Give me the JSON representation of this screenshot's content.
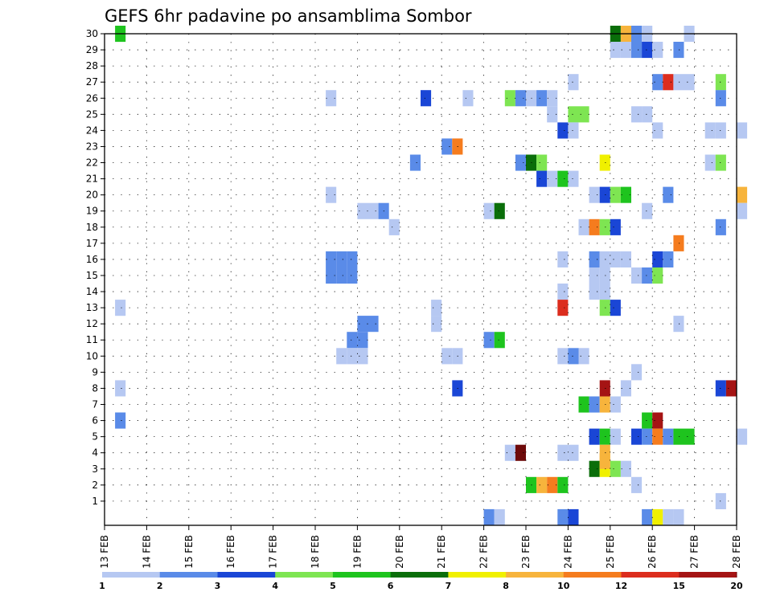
{
  "chart_data": {
    "type": "heatmap",
    "title": "GEFS 6hr padavine po ansamblima Sombor",
    "xlabel": "",
    "ylabel": "",
    "x_tick_labels": [
      "13 FEB",
      "14 FEB",
      "15 FEB",
      "16 FEB",
      "17 FEB",
      "18 FEB",
      "19 FEB",
      "20 FEB",
      "21 FEB",
      "22 FEB",
      "23 FEB",
      "24 FEB",
      "25 FEB",
      "26 FEB",
      "27 FEB",
      "28 FEB"
    ],
    "y_tick_labels": [
      "1",
      "2",
      "3",
      "4",
      "5",
      "6",
      "7",
      "8",
      "9",
      "10",
      "11",
      "12",
      "13",
      "14",
      "15",
      "16",
      "17",
      "18",
      "19",
      "20",
      "21",
      "22",
      "23",
      "24",
      "25",
      "26",
      "27",
      "28",
      "29",
      "30"
    ],
    "xlim": [
      "13 FEB",
      "28 FEB"
    ],
    "ylim": [
      0,
      30
    ],
    "x_step_hours": 6,
    "grid": "dotted",
    "colorbar": {
      "labels": [
        "1",
        "2",
        "3",
        "4",
        "5",
        "6",
        "7",
        "8",
        "10",
        "12",
        "15",
        "20"
      ],
      "colors": [
        "#b6c8f2",
        "#5a8be8",
        "#1a46d6",
        "#7ee552",
        "#1ec41e",
        "#0a6e0a",
        "#f0f000",
        "#f7b43c",
        "#f57c1e",
        "#dc2d1e",
        "#a51414",
        "#6e0a0a"
      ]
    },
    "cells": [
      [
        "13 FEB 06:00",
        30,
        5
      ],
      [
        "25 FEB 00:00",
        30,
        6
      ],
      [
        "25 FEB 06:00",
        30,
        9
      ],
      [
        "25 FEB 12:00",
        30,
        2
      ],
      [
        "25 FEB 18:00",
        30,
        1
      ],
      [
        "26 FEB 18:00",
        30,
        1
      ],
      [
        "25 FEB 00:00",
        29,
        1
      ],
      [
        "25 FEB 06:00",
        29,
        1
      ],
      [
        "25 FEB 12:00",
        29,
        2
      ],
      [
        "25 FEB 18:00",
        29,
        3
      ],
      [
        "26 FEB 00:00",
        29,
        1
      ],
      [
        "26 FEB 12:00",
        29,
        2
      ],
      [
        "26 FEB 00:00",
        27,
        2
      ],
      [
        "26 FEB 06:00",
        27,
        12
      ],
      [
        "26 FEB 12:00",
        27,
        1
      ],
      [
        "26 FEB 18:00",
        27,
        1
      ],
      [
        "24 FEB 00:00",
        27,
        1
      ],
      [
        "27 FEB 12:00",
        27,
        4
      ],
      [
        "18 FEB 06:00",
        26,
        1
      ],
      [
        "20 FEB 12:00",
        26,
        3
      ],
      [
        "21 FEB 12:00",
        26,
        1
      ],
      [
        "22 FEB 12:00",
        26,
        4
      ],
      [
        "22 FEB 18:00",
        26,
        2
      ],
      [
        "23 FEB 00:00",
        26,
        1
      ],
      [
        "23 FEB 06:00",
        26,
        2
      ],
      [
        "23 FEB 12:00",
        26,
        1
      ],
      [
        "27 FEB 12:00",
        26,
        2
      ],
      [
        "23 FEB 12:00",
        25,
        1
      ],
      [
        "25 FEB 12:00",
        25,
        1
      ],
      [
        "25 FEB 18:00",
        25,
        1
      ],
      [
        "24 FEB 00:00",
        25,
        4
      ],
      [
        "24 FEB 06:00",
        25,
        4
      ],
      [
        "23 FEB 18:00",
        24,
        3
      ],
      [
        "24 FEB 00:00",
        24,
        1
      ],
      [
        "26 FEB 00:00",
        24,
        1
      ],
      [
        "27 FEB 06:00",
        24,
        1
      ],
      [
        "27 FEB 12:00",
        24,
        1
      ],
      [
        "28 FEB 00:00",
        24,
        1
      ],
      [
        "21 FEB 00:00",
        23,
        2
      ],
      [
        "21 FEB 06:00",
        23,
        10
      ],
      [
        "20 FEB 06:00",
        22,
        2
      ],
      [
        "22 FEB 18:00",
        22,
        2
      ],
      [
        "23 FEB 00:00",
        22,
        6
      ],
      [
        "23 FEB 06:00",
        22,
        4
      ],
      [
        "24 FEB 18:00",
        22,
        7
      ],
      [
        "27 FEB 06:00",
        22,
        1
      ],
      [
        "27 FEB 12:00",
        22,
        4
      ],
      [
        "23 FEB 06:00",
        21,
        3
      ],
      [
        "23 FEB 12:00",
        21,
        1
      ],
      [
        "23 FEB 18:00",
        21,
        5
      ],
      [
        "24 FEB 00:00",
        21,
        1
      ],
      [
        "18 FEB 06:00",
        20,
        1
      ],
      [
        "24 FEB 12:00",
        20,
        1
      ],
      [
        "24 FEB 18:00",
        20,
        3
      ],
      [
        "25 FEB 00:00",
        20,
        4
      ],
      [
        "25 FEB 06:00",
        20,
        5
      ],
      [
        "26 FEB 06:00",
        20,
        2
      ],
      [
        "28 FEB 00:00",
        20,
        8
      ],
      [
        "19 FEB 00:00",
        19,
        1
      ],
      [
        "19 FEB 06:00",
        19,
        1
      ],
      [
        "19 FEB 12:00",
        19,
        2
      ],
      [
        "22 FEB 00:00",
        19,
        1
      ],
      [
        "22 FEB 06:00",
        19,
        6
      ],
      [
        "25 FEB 18:00",
        19,
        1
      ],
      [
        "28 FEB 00:00",
        19,
        1
      ],
      [
        "19 FEB 18:00",
        18,
        1
      ],
      [
        "24 FEB 06:00",
        18,
        1
      ],
      [
        "24 FEB 12:00",
        18,
        10
      ],
      [
        "24 FEB 18:00",
        18,
        4
      ],
      [
        "25 FEB 00:00",
        18,
        3
      ],
      [
        "27 FEB 12:00",
        18,
        2
      ],
      [
        "26 FEB 12:00",
        17,
        10
      ],
      [
        "23 FEB 18:00",
        16,
        1
      ],
      [
        "18 FEB 06:00",
        16,
        2
      ],
      [
        "18 FEB 12:00",
        16,
        2
      ],
      [
        "18 FEB 18:00",
        16,
        2
      ],
      [
        "24 FEB 12:00",
        16,
        2
      ],
      [
        "24 FEB 18:00",
        16,
        1
      ],
      [
        "25 FEB 00:00",
        16,
        1
      ],
      [
        "25 FEB 06:00",
        16,
        1
      ],
      [
        "26 FEB 00:00",
        16,
        3
      ],
      [
        "26 FEB 06:00",
        16,
        2
      ],
      [
        "18 FEB 06:00",
        15,
        2
      ],
      [
        "18 FEB 12:00",
        15,
        2
      ],
      [
        "18 FEB 18:00",
        15,
        2
      ],
      [
        "24 FEB 12:00",
        15,
        1
      ],
      [
        "24 FEB 18:00",
        15,
        1
      ],
      [
        "25 FEB 12:00",
        15,
        1
      ],
      [
        "25 FEB 18:00",
        15,
        2
      ],
      [
        "26 FEB 00:00",
        15,
        4
      ],
      [
        "23 FEB 18:00",
        14,
        1
      ],
      [
        "24 FEB 12:00",
        14,
        1
      ],
      [
        "24 FEB 18:00",
        14,
        1
      ],
      [
        "13 FEB 06:00",
        13,
        1
      ],
      [
        "20 FEB 18:00",
        13,
        1
      ],
      [
        "23 FEB 18:00",
        13,
        12
      ],
      [
        "24 FEB 18:00",
        13,
        4
      ],
      [
        "25 FEB 00:00",
        13,
        3
      ],
      [
        "19 FEB 00:00",
        12,
        2
      ],
      [
        "19 FEB 06:00",
        12,
        2
      ],
      [
        "20 FEB 18:00",
        12,
        1
      ],
      [
        "26 FEB 12:00",
        12,
        1
      ],
      [
        "18 FEB 18:00",
        11,
        2
      ],
      [
        "19 FEB 00:00",
        11,
        2
      ],
      [
        "22 FEB 00:00",
        11,
        2
      ],
      [
        "22 FEB 06:00",
        11,
        5
      ],
      [
        "18 FEB 12:00",
        10,
        1
      ],
      [
        "18 FEB 18:00",
        10,
        1
      ],
      [
        "19 FEB 00:00",
        10,
        1
      ],
      [
        "21 FEB 00:00",
        10,
        1
      ],
      [
        "21 FEB 06:00",
        10,
        1
      ],
      [
        "23 FEB 18:00",
        10,
        1
      ],
      [
        "24 FEB 00:00",
        10,
        2
      ],
      [
        "24 FEB 06:00",
        10,
        1
      ],
      [
        "25 FEB 12:00",
        9,
        1
      ],
      [
        "13 FEB 06:00",
        8,
        1
      ],
      [
        "21 FEB 06:00",
        8,
        3
      ],
      [
        "24 FEB 18:00",
        8,
        15
      ],
      [
        "25 FEB 06:00",
        8,
        1
      ],
      [
        "27 FEB 12:00",
        8,
        3
      ],
      [
        "27 FEB 18:00",
        8,
        15
      ],
      [
        "24 FEB 06:00",
        7,
        5
      ],
      [
        "24 FEB 12:00",
        7,
        2
      ],
      [
        "24 FEB 18:00",
        7,
        9
      ],
      [
        "25 FEB 00:00",
        7,
        1
      ],
      [
        "13 FEB 06:00",
        6,
        2
      ],
      [
        "25 FEB 18:00",
        6,
        5
      ],
      [
        "26 FEB 00:00",
        6,
        15
      ],
      [
        "24 FEB 12:00",
        5,
        3
      ],
      [
        "24 FEB 18:00",
        5,
        5
      ],
      [
        "25 FEB 00:00",
        5,
        1
      ],
      [
        "25 FEB 12:00",
        5,
        3
      ],
      [
        "25 FEB 18:00",
        5,
        2
      ],
      [
        "26 FEB 00:00",
        5,
        10
      ],
      [
        "26 FEB 06:00",
        5,
        2
      ],
      [
        "26 FEB 12:00",
        5,
        5
      ],
      [
        "26 FEB 18:00",
        5,
        5
      ],
      [
        "28 FEB 00:00",
        5,
        1
      ],
      [
        "22 FEB 12:00",
        4,
        1
      ],
      [
        "22 FEB 18:00",
        4,
        20
      ],
      [
        "23 FEB 18:00",
        4,
        1
      ],
      [
        "24 FEB 00:00",
        4,
        1
      ],
      [
        "24 FEB 18:00",
        4,
        9
      ],
      [
        "24 FEB 12:00",
        3,
        6
      ],
      [
        "24 FEB 18:00",
        3,
        7
      ],
      [
        "25 FEB 00:00",
        3,
        4
      ],
      [
        "25 FEB 06:00",
        3,
        1
      ],
      [
        "24 FEB 18:00",
        3.5,
        9
      ],
      [
        "23 FEB 00:00",
        2,
        5
      ],
      [
        "23 FEB 06:00",
        2,
        9
      ],
      [
        "23 FEB 12:00",
        2,
        10
      ],
      [
        "23 FEB 18:00",
        2,
        5
      ],
      [
        "25 FEB 12:00",
        2,
        1
      ],
      [
        "27 FEB 12:00",
        1,
        1
      ],
      [
        "22 FEB 00:00",
        0,
        2
      ],
      [
        "22 FEB 06:00",
        0,
        1
      ],
      [
        "23 FEB 18:00",
        0,
        2
      ],
      [
        "24 FEB 00:00",
        0,
        3
      ],
      [
        "25 FEB 18:00",
        0,
        2
      ],
      [
        "26 FEB 00:00",
        0,
        7
      ],
      [
        "26 FEB 06:00",
        0,
        1
      ],
      [
        "26 FEB 12:00",
        0,
        1
      ]
    ]
  }
}
